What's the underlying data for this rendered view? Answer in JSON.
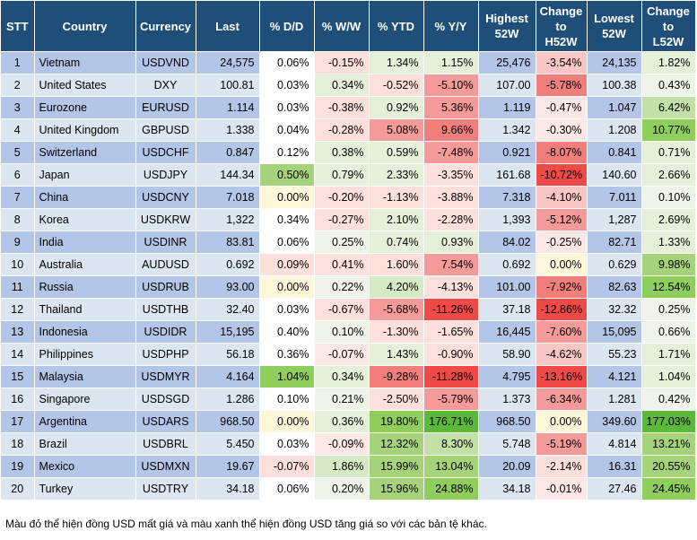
{
  "headers": [
    "STT",
    "Country",
    "Currency",
    "Last",
    "% D/D",
    "% W/W",
    "% YTD",
    "% Y/Y",
    "Highest\n52W",
    "Change\nto\nH52W",
    "Lowest\n52W",
    "Change\nto\nL52W"
  ],
  "rows": [
    {
      "stt": "1",
      "country": "Vietnam",
      "currency": "USDVND",
      "last": "24,575",
      "dd": "0.06%",
      "ww": "-0.15%",
      "ytd": "1.34%",
      "yy": "1.15%",
      "h52": "25,476",
      "ch": "-3.54%",
      "l52": "24,135",
      "cl": "1.82%",
      "bg": {
        "dd": "#ffffff",
        "ww": "#fde0dc",
        "ytd": "#e4f0d8",
        "yy": "#e4f0d8",
        "ch": "#f8c6c4",
        "cl": "#e4f0d8"
      }
    },
    {
      "stt": "2",
      "country": "United States",
      "currency": "DXY",
      "last": "100.81",
      "dd": "0.03%",
      "ww": "0.34%",
      "ytd": "-0.52%",
      "yy": "-5.10%",
      "h52": "107.00",
      "ch": "-5.78%",
      "l52": "100.38",
      "cl": "0.43%",
      "bg": {
        "dd": "#ffffff",
        "ww": "#e4f0d8",
        "ytd": "#fde0dc",
        "yy": "#f49a98",
        "ch": "#f07f7c",
        "cl": "#eef5e8"
      }
    },
    {
      "stt": "3",
      "country": "Eurozone",
      "currency": "EURUSD",
      "last": "1.114",
      "dd": "0.03%",
      "ww": "-0.38%",
      "ytd": "0.92%",
      "yy": "5.36%",
      "h52": "1.119",
      "ch": "-0.47%",
      "l52": "1.047",
      "cl": "6.42%",
      "bg": {
        "dd": "#ffffff",
        "ww": "#fde0dc",
        "ytd": "#e4f0d8",
        "yy": "#f49a98",
        "ch": "#fde8e6",
        "cl": "#c2e0a8"
      }
    },
    {
      "stt": "4",
      "country": "United Kingdom",
      "currency": "GBPUSD",
      "last": "1.338",
      "dd": "0.04%",
      "ww": "-0.28%",
      "ytd": "5.08%",
      "yy": "9.66%",
      "h52": "1.342",
      "ch": "-0.30%",
      "l52": "1.208",
      "cl": "10.77%",
      "bg": {
        "dd": "#ffffff",
        "ww": "#fde0dc",
        "ytd": "#f49a98",
        "yy": "#f07f7c",
        "ch": "#fde8e6",
        "cl": "#8fcd5c"
      }
    },
    {
      "stt": "5",
      "country": "Switzerland",
      "currency": "USDCHF",
      "last": "0.847",
      "dd": "0.12%",
      "ww": "0.38%",
      "ytd": "0.59%",
      "yy": "-7.48%",
      "h52": "0.921",
      "ch": "-8.07%",
      "l52": "0.841",
      "cl": "0.71%",
      "bg": {
        "dd": "#ffffff",
        "ww": "#e4f0d8",
        "ytd": "#e4f0d8",
        "yy": "#f49a98",
        "ch": "#f07f7c",
        "cl": "#e4f0d8"
      }
    },
    {
      "stt": "6",
      "country": "Japan",
      "currency": "USDJPY",
      "last": "144.34",
      "dd": "0.50%",
      "ww": "0.79%",
      "ytd": "2.33%",
      "yy": "-3.35%",
      "h52": "161.68",
      "ch": "-10.72%",
      "l52": "140.60",
      "cl": "2.66%",
      "bg": {
        "dd": "#a6d27c",
        "ww": "#e4f0d8",
        "ytd": "#e4f0d8",
        "yy": "#fde0dc",
        "ch": "#f04a47",
        "cl": "#e4f0d8"
      }
    },
    {
      "stt": "7",
      "country": "China",
      "currency": "USDCNY",
      "last": "7.018",
      "dd": "0.00%",
      "ww": "-0.20%",
      "ytd": "-1.13%",
      "yy": "-3.88%",
      "h52": "7.318",
      "ch": "-4.10%",
      "l52": "7.011",
      "cl": "0.10%",
      "bg": {
        "dd": "#fff7da",
        "ww": "#fde0dc",
        "ytd": "#fde0dc",
        "yy": "#fde0dc",
        "ch": "#f8c6c4",
        "cl": "#eef5e8"
      }
    },
    {
      "stt": "8",
      "country": "Korea",
      "currency": "USDKRW",
      "last": "1,322",
      "dd": "0.34%",
      "ww": "-0.27%",
      "ytd": "2.10%",
      "yy": "-2.28%",
      "h52": "1,393",
      "ch": "-5.12%",
      "l52": "1,287",
      "cl": "2.69%",
      "bg": {
        "dd": "#ffffff",
        "ww": "#fde0dc",
        "ytd": "#e4f0d8",
        "yy": "#fde0dc",
        "ch": "#f49a98",
        "cl": "#e4f0d8"
      }
    },
    {
      "stt": "9",
      "country": "India",
      "currency": "USDINR",
      "last": "83.81",
      "dd": "0.06%",
      "ww": "0.25%",
      "ytd": "0.74%",
      "yy": "0.93%",
      "h52": "84.02",
      "ch": "-0.25%",
      "l52": "82.71",
      "cl": "1.33%",
      "bg": {
        "dd": "#ffffff",
        "ww": "#eef5e8",
        "ytd": "#e4f0d8",
        "yy": "#e4f0d8",
        "ch": "#fde8e6",
        "cl": "#e4f0d8"
      }
    },
    {
      "stt": "10",
      "country": "Australia",
      "currency": "AUDUSD",
      "last": "0.692",
      "dd": "0.09%",
      "ww": "0.41%",
      "ytd": "1.60%",
      "yy": "7.54%",
      "h52": "0.692",
      "ch": "0.00%",
      "l52": "0.629",
      "cl": "9.98%",
      "bg": {
        "dd": "#fde0dc",
        "ww": "#fde0dc",
        "ytd": "#fde0dc",
        "yy": "#f49a98",
        "ch": "#fff7da",
        "cl": "#a6d27c"
      }
    },
    {
      "stt": "11",
      "country": "Russia",
      "currency": "USDRUB",
      "last": "93.00",
      "dd": "0.00%",
      "ww": "0.22%",
      "ytd": "4.20%",
      "yy": "-4.13%",
      "h52": "101.00",
      "ch": "-7.92%",
      "l52": "82.63",
      "cl": "12.54%",
      "bg": {
        "dd": "#fff7da",
        "ww": "#eef5e8",
        "ytd": "#d6eac6",
        "yy": "#fde0dc",
        "ch": "#f07f7c",
        "cl": "#8fcd5c"
      }
    },
    {
      "stt": "12",
      "country": "Thailand",
      "currency": "USDTHB",
      "last": "32.40",
      "dd": "0.03%",
      "ww": "-0.67%",
      "ytd": "-5.68%",
      "yy": "-11.26%",
      "h52": "37.18",
      "ch": "-12.86%",
      "l52": "32.32",
      "cl": "0.25%",
      "bg": {
        "dd": "#ffffff",
        "ww": "#fde0dc",
        "ytd": "#f49a98",
        "yy": "#f04a47",
        "ch": "#f04a47",
        "cl": "#eef5e8"
      }
    },
    {
      "stt": "13",
      "country": "Indonesia",
      "currency": "USDIDR",
      "last": "15,195",
      "dd": "0.40%",
      "ww": "0.10%",
      "ytd": "-1.30%",
      "yy": "-1.65%",
      "h52": "16,445",
      "ch": "-7.60%",
      "l52": "15,095",
      "cl": "0.66%",
      "bg": {
        "dd": "#ffffff",
        "ww": "#eef5e8",
        "ytd": "#fde0dc",
        "yy": "#fde0dc",
        "ch": "#f49a98",
        "cl": "#eef5e8"
      }
    },
    {
      "stt": "14",
      "country": "Philippines",
      "currency": "USDPHP",
      "last": "56.18",
      "dd": "0.36%",
      "ww": "-0.07%",
      "ytd": "1.43%",
      "yy": "-0.90%",
      "h52": "58.90",
      "ch": "-4.62%",
      "l52": "55.23",
      "cl": "1.71%",
      "bg": {
        "dd": "#ffffff",
        "ww": "#fde8e6",
        "ytd": "#e4f0d8",
        "yy": "#fde0dc",
        "ch": "#f8c6c4",
        "cl": "#e4f0d8"
      }
    },
    {
      "stt": "15",
      "country": "Malaysia",
      "currency": "USDMYR",
      "last": "4.164",
      "dd": "1.04%",
      "ww": "0.34%",
      "ytd": "-9.28%",
      "yy": "-11.28%",
      "h52": "4.795",
      "ch": "-13.16%",
      "l52": "4.121",
      "cl": "1.04%",
      "bg": {
        "dd": "#8fcd5c",
        "ww": "#e4f0d8",
        "ytd": "#f07f7c",
        "yy": "#f04a47",
        "ch": "#f04a47",
        "cl": "#e4f0d8"
      }
    },
    {
      "stt": "16",
      "country": "Singapore",
      "currency": "USDSGD",
      "last": "1.286",
      "dd": "0.10%",
      "ww": "0.21%",
      "ytd": "-2.50%",
      "yy": "-5.79%",
      "h52": "1.373",
      "ch": "-6.34%",
      "l52": "1.281",
      "cl": "0.42%",
      "bg": {
        "dd": "#ffffff",
        "ww": "#eef5e8",
        "ytd": "#fde0dc",
        "yy": "#f49a98",
        "ch": "#f49a98",
        "cl": "#eef5e8"
      }
    },
    {
      "stt": "17",
      "country": "Argentina",
      "currency": "USDARS",
      "last": "968.50",
      "dd": "0.00%",
      "ww": "0.36%",
      "ytd": "19.80%",
      "yy": "176.71%",
      "h52": "968.50",
      "ch": "0.00%",
      "l52": "349.60",
      "cl": "177.03%",
      "bg": {
        "dd": "#fff7da",
        "ww": "#e4f0d8",
        "ytd": "#8fcd5c",
        "yy": "#5cb83a",
        "ch": "#fff7da",
        "cl": "#5cb83a"
      }
    },
    {
      "stt": "18",
      "country": "Brazil",
      "currency": "USDBRL",
      "last": "5.450",
      "dd": "0.03%",
      "ww": "-0.09%",
      "ytd": "12.32%",
      "yy": "8.30%",
      "h52": "5.748",
      "ch": "-5.19%",
      "l52": "4.814",
      "cl": "13.21%",
      "bg": {
        "dd": "#ffffff",
        "ww": "#fde8e6",
        "ytd": "#a6d27c",
        "yy": "#c2e0a8",
        "ch": "#f49a98",
        "cl": "#a6d27c"
      }
    },
    {
      "stt": "19",
      "country": "Mexico",
      "currency": "USDMXN",
      "last": "19.67",
      "dd": "-0.07%",
      "ww": "1.86%",
      "ytd": "15.99%",
      "yy": "13.04%",
      "h52": "20.09",
      "ch": "-2.14%",
      "l52": "16.31",
      "cl": "20.55%",
      "bg": {
        "dd": "#fde0dc",
        "ww": "#d6eac6",
        "ytd": "#a6d27c",
        "yy": "#a6d27c",
        "ch": "#fde0dc",
        "cl": "#a6d27c"
      }
    },
    {
      "stt": "20",
      "country": "Turkey",
      "currency": "USDTRY",
      "last": "34.18",
      "dd": "0.06%",
      "ww": "0.20%",
      "ytd": "15.96%",
      "yy": "24.88%",
      "h52": "34.18",
      "ch": "-0.01%",
      "l52": "27.46",
      "cl": "24.45%",
      "bg": {
        "dd": "#ffffff",
        "ww": "#eef5e8",
        "ytd": "#a6d27c",
        "yy": "#8fcd5c",
        "ch": "#fde8e6",
        "cl": "#8fcd5c"
      }
    }
  ],
  "note": "Màu đỏ thể hiện đồng USD mất giá và màu xanh thể hiện đồng USD tăng giá so với các bản tệ khác."
}
